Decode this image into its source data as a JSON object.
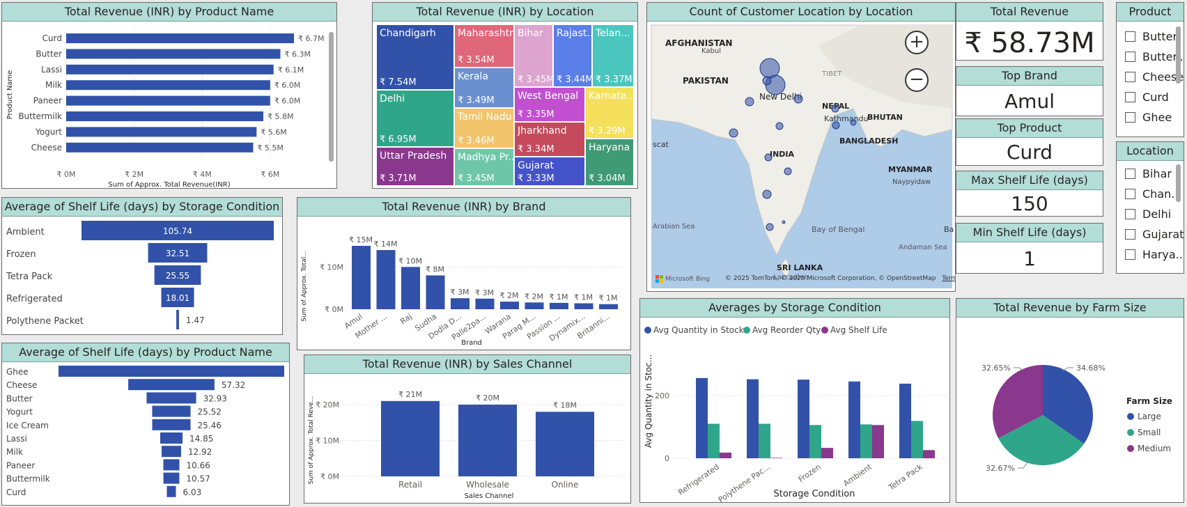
{
  "colors": {
    "bar": "#3152a8",
    "teal": "#2fa58a",
    "purple": "#8a378e",
    "title_bg": "#b3ddd7"
  },
  "rev_product": {
    "title": "Total Revenue (INR) by Product Name",
    "ylabel": "Product Name",
    "xlabel": "Sum of Approx. Total Revenue(INR)",
    "categories": [
      "Curd",
      "Butter",
      "Lassi",
      "Milk",
      "Paneer",
      "Buttermilk",
      "Yogurt",
      "Cheese"
    ],
    "labels": [
      "₹ 6.7M",
      "₹ 6.3M",
      "₹ 6.1M",
      "₹ 6.0M",
      "₹ 6.0M",
      "₹ 5.8M",
      "₹ 5.6M",
      "₹ 5.5M"
    ],
    "ticks": [
      "₹ 0M",
      "₹ 2M",
      "₹ 4M",
      "₹ 6M"
    ]
  },
  "rev_location": {
    "title": "Total Revenue (INR) by Location",
    "cells": [
      {
        "name": "Chandigarh",
        "value": "₹ 7.54M",
        "color": "#3152a8"
      },
      {
        "name": "Delhi",
        "value": "₹ 6.95M",
        "color": "#2fa58a"
      },
      {
        "name": "Uttar Pradesh",
        "value": "₹ 3.71M",
        "color": "#8a378e"
      },
      {
        "name": "Maharashtra",
        "value": "₹ 3.54M",
        "color": "#e0667a"
      },
      {
        "name": "Kerala",
        "value": "₹ 3.49M",
        "color": "#6b90d2"
      },
      {
        "name": "Tamil Nadu",
        "value": "₹ 3.46M",
        "color": "#f2c46b"
      },
      {
        "name": "Madhya Pr...",
        "value": "₹ 3.45M",
        "color": "#6ec6a8"
      },
      {
        "name": "Bihar",
        "value": "₹ 3.45M",
        "color": "#dda4cf"
      },
      {
        "name": "Rajast...",
        "value": "₹ 3.44M",
        "color": "#5b7fe8"
      },
      {
        "name": "Telan...",
        "value": "₹ 3.37M",
        "color": "#4ac6bf"
      },
      {
        "name": "West Bengal",
        "value": "₹ 3.35M",
        "color": "#c24fd0"
      },
      {
        "name": "Karnata...",
        "value": "₹ 3.29M",
        "color": "#f5e05c"
      },
      {
        "name": "Jharkhand",
        "value": "₹ 3.34M",
        "color": "#c44a5c"
      },
      {
        "name": "Haryana",
        "value": "₹ 3.04M",
        "color": "#3f9a76"
      },
      {
        "name": "Gujarat",
        "value": "₹ 3.33M",
        "color": "#4553c8"
      }
    ]
  },
  "map": {
    "title": "Count of Customer Location by Location",
    "labels": [
      "AFGHANISTAN",
      "PAKISTAN",
      "INDIA",
      "NEPAL",
      "BHUTAN",
      "BANGLADESH",
      "MYANMAR",
      "SRI LANKA",
      "TIBET",
      "New Delhi",
      "Kathmandu",
      "Naypyidaw",
      "Kabul",
      "Arabian Sea",
      "Bay of Bengal",
      "Andaman Sea",
      "Laccadive",
      "scat",
      "Ba"
    ],
    "attribution": "© 2025 TomTom, © 2025 Microsoft Corporation, © OpenStreetMap",
    "terms": "Terms",
    "brand": "Microsoft Bing",
    "zoom_in": "+",
    "zoom_out": "−"
  },
  "kpis": [
    {
      "label": "Total Revenue",
      "value": "₹ 58.73M"
    },
    {
      "label": "Top Brand",
      "value": "Amul"
    },
    {
      "label": "Top Product",
      "value": "Curd"
    },
    {
      "label": "Max Shelf Life (days)",
      "value": "150"
    },
    {
      "label": "Min Shelf Life (days)",
      "value": "1"
    }
  ],
  "slicer_product": {
    "title": "Product",
    "items": [
      "Butter",
      "Butter...",
      "Cheese",
      "Curd",
      "Ghee"
    ]
  },
  "slicer_location": {
    "title": "Location",
    "items": [
      "Bihar",
      "Chan...",
      "Delhi",
      "Gujarat",
      "Harya..."
    ]
  },
  "shelf_storage": {
    "title": "Average of Shelf Life (days) by Storage Condition",
    "categories": [
      "Ambient",
      "Frozen",
      "Tetra Pack",
      "Refrigerated",
      "Polythene Packet"
    ],
    "values": [
      105.74,
      32.51,
      25.55,
      18.01,
      1.47
    ],
    "labels": [
      "105.74",
      "32.51",
      "25.55",
      "18.01",
      "1.47"
    ]
  },
  "rev_brand": {
    "title": "Total Revenue (INR) by Brand",
    "ylabel": "Sum of Approx. Total...",
    "xlabel": "Brand",
    "categories": [
      "Amul",
      "Mother ...",
      "Raj",
      "Sudha",
      "Dodla D...",
      "Palle2pa...",
      "Warana",
      "Parag M...",
      "Passion ...",
      "Dynamix...",
      "Britanni..."
    ],
    "values": [
      15,
      14,
      10,
      8,
      2.6,
      2.5,
      1.8,
      1.6,
      1.5,
      1.4,
      1.2
    ],
    "labels": [
      "₹ 15M",
      "₹ 14M",
      "₹ 10M",
      "₹ 8M",
      "₹ 3M",
      "₹ 3M",
      "₹ 2M",
      "₹ 2M",
      "₹ 1M",
      "₹ 1M",
      "₹ 1M"
    ],
    "ticks": [
      "₹ 0M",
      "₹ 10M"
    ]
  },
  "shelf_product": {
    "title": "Average of Shelf Life (days) by Product Name",
    "categories": [
      "Ghee",
      "Cheese",
      "Butter",
      "Yogurt",
      "Ice Cream",
      "Lassi",
      "Milk",
      "Paneer",
      "Buttermilk",
      "Curd"
    ],
    "values": [
      150,
      57.32,
      32.93,
      25.52,
      25.46,
      14.85,
      12.92,
      10.66,
      10.57,
      6.03
    ],
    "labels": [
      "",
      "57.32",
      "32.93",
      "25.52",
      "25.46",
      "14.85",
      "12.92",
      "10.66",
      "10.57",
      "6.03"
    ]
  },
  "rev_channel": {
    "title": "Total Revenue (INR) by Sales Channel",
    "ylabel": "Sum of Approx. Total Reve...",
    "xlabel": "Sales Channel",
    "categories": [
      "Retail",
      "Wholesale",
      "Online"
    ],
    "values": [
      21,
      20,
      18
    ],
    "labels": [
      "₹ 21M",
      "₹ 20M",
      "₹ 18M"
    ],
    "ticks": [
      "₹ 0M",
      "₹ 10M",
      "₹ 20M"
    ]
  },
  "avg_storage": {
    "title": "Averages by Storage Condition",
    "ylabel": "Avg Quantity in Stoc...",
    "xlabel": "Storage Condition",
    "legend": [
      "Avg Quantity in Stock",
      "Avg Reorder Qty",
      "Avg Shelf Life"
    ],
    "categories": [
      "Refrigerated",
      "Polythene Pac...",
      "Frozen",
      "Ambient",
      "Tetra Pack"
    ],
    "ticks": [
      "0",
      "200"
    ]
  },
  "farm": {
    "title": "Total Revenue by Farm Size",
    "legend_title": "Farm Size",
    "legend": [
      "Large",
      "Small",
      "Medium"
    ],
    "labels": [
      "34.68%",
      "32.67%",
      "32.65%"
    ]
  },
  "chart_data": [
    {
      "type": "bar",
      "title": "Total Revenue (INR) by Product Name",
      "categories": [
        "Curd",
        "Butter",
        "Lassi",
        "Milk",
        "Paneer",
        "Buttermilk",
        "Yogurt",
        "Cheese"
      ],
      "values": [
        6.7,
        6.3,
        6.1,
        6.0,
        6.0,
        5.8,
        5.6,
        5.5
      ],
      "xlabel": "Sum of Approx. Total Revenue(INR)",
      "ylabel": "Product Name"
    },
    {
      "type": "bar",
      "title": "Total Revenue (INR) by Brand",
      "categories": [
        "Amul",
        "Mother ...",
        "Raj",
        "Sudha",
        "Dodla D...",
        "Palle2pa...",
        "Warana",
        "Parag M...",
        "Passion ...",
        "Dynamix...",
        "Britanni..."
      ],
      "values": [
        15,
        14,
        10,
        8,
        3,
        3,
        2,
        2,
        1,
        1,
        1
      ],
      "xlabel": "Brand"
    },
    {
      "type": "bar",
      "title": "Total Revenue (INR) by Sales Channel",
      "categories": [
        "Retail",
        "Wholesale",
        "Online"
      ],
      "values": [
        21,
        20,
        18
      ],
      "xlabel": "Sales Channel"
    },
    {
      "type": "bar",
      "title": "Average of Shelf Life (days) by Storage Condition",
      "categories": [
        "Ambient",
        "Frozen",
        "Tetra Pack",
        "Refrigerated",
        "Polythene Packet"
      ],
      "values": [
        105.74,
        32.51,
        25.55,
        18.01,
        1.47
      ]
    },
    {
      "type": "bar",
      "title": "Average of Shelf Life (days) by Product Name",
      "categories": [
        "Ghee",
        "Cheese",
        "Butter",
        "Yogurt",
        "Ice Cream",
        "Lassi",
        "Milk",
        "Paneer",
        "Buttermilk",
        "Curd"
      ],
      "values": [
        150,
        57.32,
        32.93,
        25.52,
        25.46,
        14.85,
        12.92,
        10.66,
        10.57,
        6.03
      ]
    },
    {
      "type": "bar",
      "title": "Averages by Storage Condition",
      "categories": [
        "Refrigerated",
        "Polythene Pac...",
        "Frozen",
        "Ambient",
        "Tetra Pack"
      ],
      "series": [
        {
          "name": "Avg Quantity in Stock",
          "values": [
            256,
            252,
            251,
            245,
            238
          ]
        },
        {
          "name": "Avg Reorder Qty",
          "values": [
            110,
            110,
            106,
            108,
            119
          ]
        },
        {
          "name": "Avg Shelf Life",
          "values": [
            18,
            1.5,
            33,
            106,
            26
          ]
        }
      ],
      "ylabel": "Avg Quantity in Stoc...",
      "xlabel": "Storage Condition"
    },
    {
      "type": "pie",
      "title": "Total Revenue by Farm Size",
      "categories": [
        "Large",
        "Small",
        "Medium"
      ],
      "values": [
        34.68,
        32.67,
        32.65
      ]
    }
  ]
}
